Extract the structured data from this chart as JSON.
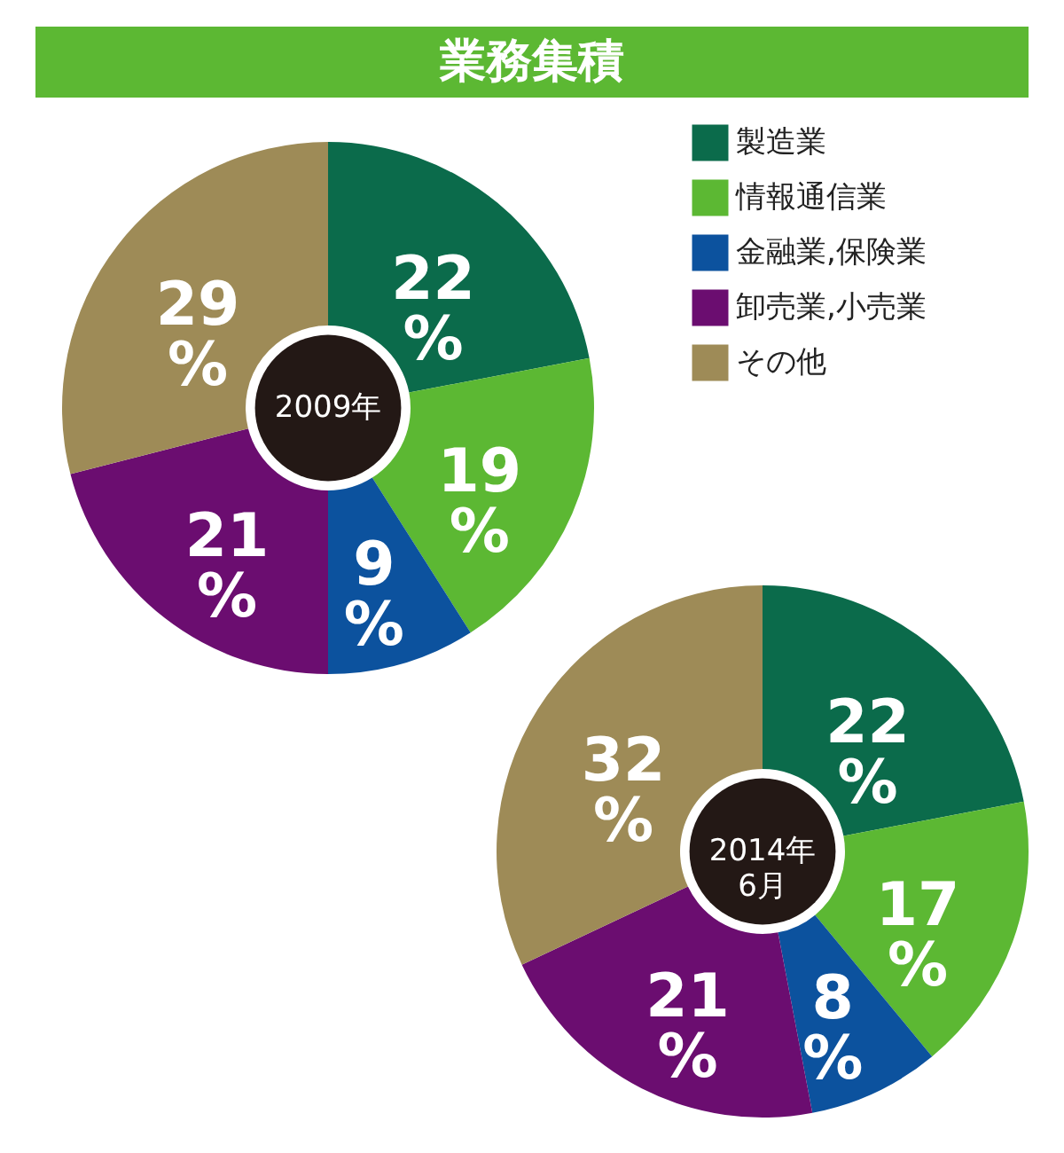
{
  "chart_data": [
    {
      "type": "donut",
      "title": "業務集積",
      "categories": [
        "製造業",
        "情報通信業",
        "金融業,保険業",
        "卸売業,小売業",
        "その他"
      ],
      "values": [
        22,
        19,
        9,
        21,
        29
      ],
      "colors": [
        "#0b6b4b",
        "#5cb833",
        "#0c529e",
        "#6b0d70",
        "#9e8b57"
      ],
      "value_labels": [
        "22\n%",
        "19\n%",
        "9\n%",
        "21\n%",
        "29\n%"
      ],
      "annotations": [
        "2009年"
      ],
      "legend": "top right"
    },
    {
      "type": "donut",
      "categories": [
        null,
        null,
        null,
        null,
        null
      ],
      "values": [
        22,
        17,
        8,
        21,
        32
      ],
      "colors": [
        "#0b6b4b",
        "#5cb833",
        "#0c529e",
        "#6b0d70",
        "#9e8b57"
      ],
      "value_labels": [
        "22\n%",
        "17\n%",
        "8\n%",
        "21\n%",
        "32\n%"
      ],
      "annotations": [
        "2014年\n6月"
      ]
    }
  ]
}
